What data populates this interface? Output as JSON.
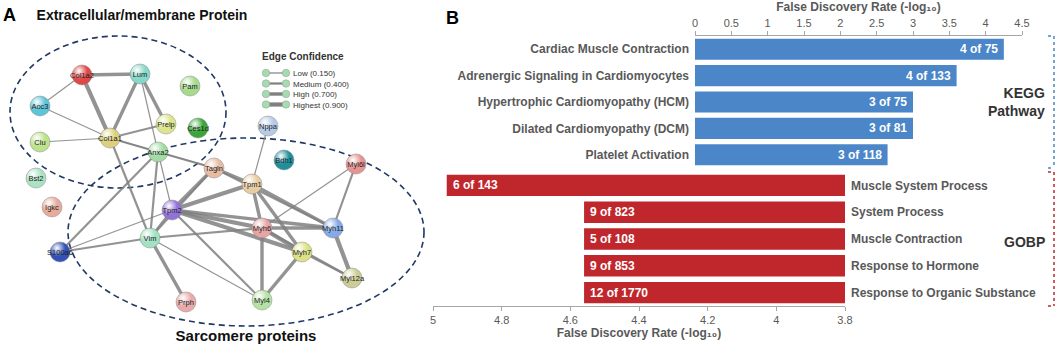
{
  "panel_labels": [
    "A",
    "B"
  ],
  "diagram": {
    "group_top": "Extracellular/membrane Protein",
    "group_bottom": "Sarcomere proteins",
    "legend": {
      "title": "Edge Confidence",
      "levels": [
        {
          "label": "Low (0.150)",
          "value": 0.15
        },
        {
          "label": "Medium (0.400)",
          "value": 0.4
        },
        {
          "label": "High (0.700)",
          "value": 0.7
        },
        {
          "label": "Highest (0.900)",
          "value": 0.9
        }
      ]
    },
    "nodes": [
      {
        "label": "Col1a2",
        "color": "#e04848"
      },
      {
        "label": "Lum",
        "color": "#86d8c8"
      },
      {
        "label": "Pam",
        "color": "#a4dc8c"
      },
      {
        "label": "Aoc3",
        "color": "#5cc4d8"
      },
      {
        "label": "Prelp",
        "color": "#dce58c"
      },
      {
        "label": "Clu",
        "color": "#bce28c"
      },
      {
        "label": "Col1a1",
        "color": "#dcd07c"
      },
      {
        "label": "Anxa2",
        "color": "#a2dca4"
      },
      {
        "label": "Ces1d",
        "color": "#3aa63a"
      },
      {
        "label": "Nppa",
        "color": "#b4cce8"
      },
      {
        "label": "Bdh1",
        "color": "#1e909c"
      },
      {
        "label": "Tagln",
        "color": "#e8bca2"
      },
      {
        "label": "Tpm1",
        "color": "#e8cca2"
      },
      {
        "label": "Myl6l",
        "color": "#e89292"
      },
      {
        "label": "Tpm2",
        "color": "#9272d8"
      },
      {
        "label": "Vim",
        "color": "#a2e2c2"
      },
      {
        "label": "Myh6",
        "color": "#e8a4a4"
      },
      {
        "label": "Myh11",
        "color": "#84aae8"
      },
      {
        "label": "Myh7",
        "color": "#dce284"
      },
      {
        "label": "Myl12a",
        "color": "#cccc94"
      },
      {
        "label": "Myl4",
        "color": "#b4e2a4"
      },
      {
        "label": "Prph",
        "color": "#e8aaaa"
      },
      {
        "label": "S100a6",
        "color": "#3252b8"
      },
      {
        "label": "Igkc",
        "color": "#e8aa9a"
      },
      {
        "label": "Bst2",
        "color": "#aae2c4"
      }
    ],
    "edges": [
      [
        "Col1a2",
        "Col1a1",
        0.9
      ],
      [
        "Col1a2",
        "Lum",
        0.7
      ],
      [
        "Lum",
        "Col1a1",
        0.7
      ],
      [
        "Lum",
        "Prelp",
        0.7
      ],
      [
        "Col1a1",
        "Prelp",
        0.4
      ],
      [
        "Aoc3",
        "Col1a1",
        0.15
      ],
      [
        "Col1a2",
        "Aoc3",
        0.15
      ],
      [
        "Col1a1",
        "Anxa2",
        0.4
      ],
      [
        "Clu",
        "Col1a1",
        0.15
      ],
      [
        "Lum",
        "Anxa2",
        0.15
      ],
      [
        "Col1a1",
        "Tagln",
        0.15
      ],
      [
        "Col1a1",
        "Vim",
        0.4
      ],
      [
        "Anxa2",
        "Vim",
        0.4
      ],
      [
        "Anxa2",
        "Tagln",
        0.4
      ],
      [
        "Anxa2",
        "S100a6",
        0.4
      ],
      [
        "Tagln",
        "Tpm1",
        0.7
      ],
      [
        "Tagln",
        "Tpm2",
        0.7
      ],
      [
        "Tpm1",
        "Tpm2",
        0.9
      ],
      [
        "Tpm1",
        "Myh6",
        0.7
      ],
      [
        "Tpm1",
        "Myh7",
        0.7
      ],
      [
        "Tpm2",
        "Myh6",
        0.9
      ],
      [
        "Tpm2",
        "Myh7",
        0.9
      ],
      [
        "Tpm2",
        "Myh11",
        0.7
      ],
      [
        "Tpm1",
        "Myh11",
        0.7
      ],
      [
        "Myh6",
        "Myh7",
        0.9
      ],
      [
        "Myh6",
        "Myl4",
        0.7
      ],
      [
        "Myh7",
        "Myl4",
        0.7
      ],
      [
        "Myh11",
        "Myl12a",
        0.9
      ],
      [
        "Myh6",
        "Myl12a",
        0.4
      ],
      [
        "Myh7",
        "Myl12a",
        0.4
      ],
      [
        "Vim",
        "Tpm2",
        0.4
      ],
      [
        "Vim",
        "Prph",
        0.7
      ],
      [
        "Vim",
        "S100a6",
        0.4
      ],
      [
        "Vim",
        "Myh6",
        0.4
      ],
      [
        "Tpm2",
        "Myl4",
        0.4
      ],
      [
        "Myl6l",
        "Myh11",
        0.4
      ],
      [
        "Myl6l",
        "Myh6",
        0.15
      ],
      [
        "Vim",
        "Tagln",
        0.4
      ],
      [
        "Myh11",
        "Myh6",
        0.7
      ],
      [
        "Tpm2",
        "S100a6",
        0.15
      ],
      [
        "Nppa",
        "Tpm1",
        0.15
      ],
      [
        "Anxa2",
        "Tpm2",
        0.15
      ],
      [
        "Vim",
        "Myl4",
        0.15
      ],
      [
        "Tagln",
        "Myh11",
        0.4
      ]
    ]
  },
  "chart_data": [
    {
      "type": "bar",
      "orientation": "horizontal",
      "annotation": "KEGG Pathway",
      "xlabel": "False Discovery Rate (-log₁₀)",
      "categories": [
        "Cardiac Muscle Contraction",
        "Adrenergic Signaling in Cardiomyocytes",
        "Hypertrophic Cardiomyopathy (HCM)",
        "Dilated Cardiomyopathy (DCM)",
        "Platelet Activation"
      ],
      "values": [
        4.25,
        3.6,
        3.0,
        3.0,
        2.65
      ],
      "bar_labels": [
        "4 of 75",
        "4 of 133",
        "3 of 75",
        "3 of 81",
        "3 of 118"
      ],
      "color": "#4a86c8",
      "xlim": [
        0,
        4.5
      ],
      "xticks": [
        0,
        0.5,
        1,
        1.5,
        2,
        2.5,
        3,
        3.5,
        4,
        4.5
      ],
      "grid": false
    },
    {
      "type": "bar",
      "orientation": "horizontal",
      "annotation": "GOBP",
      "xlabel": "False Discovery Rate (-log₁₀)",
      "categories": [
        "Muscle System Process",
        "System Process",
        "Muscle Contraction",
        "Response to Hormone",
        "Response to Organic Substance"
      ],
      "values": [
        4.96,
        4.56,
        4.56,
        4.56,
        4.56
      ],
      "bar_labels": [
        "6 of 143",
        "9 of 823",
        "5 of 108",
        "9 of 853",
        "12 of 1770"
      ],
      "color": "#c0272d",
      "xlim": [
        5,
        3.8
      ],
      "xticks": [
        5,
        4.8,
        4.6,
        4.4,
        4.2,
        4,
        3.8
      ],
      "grid": false
    }
  ]
}
